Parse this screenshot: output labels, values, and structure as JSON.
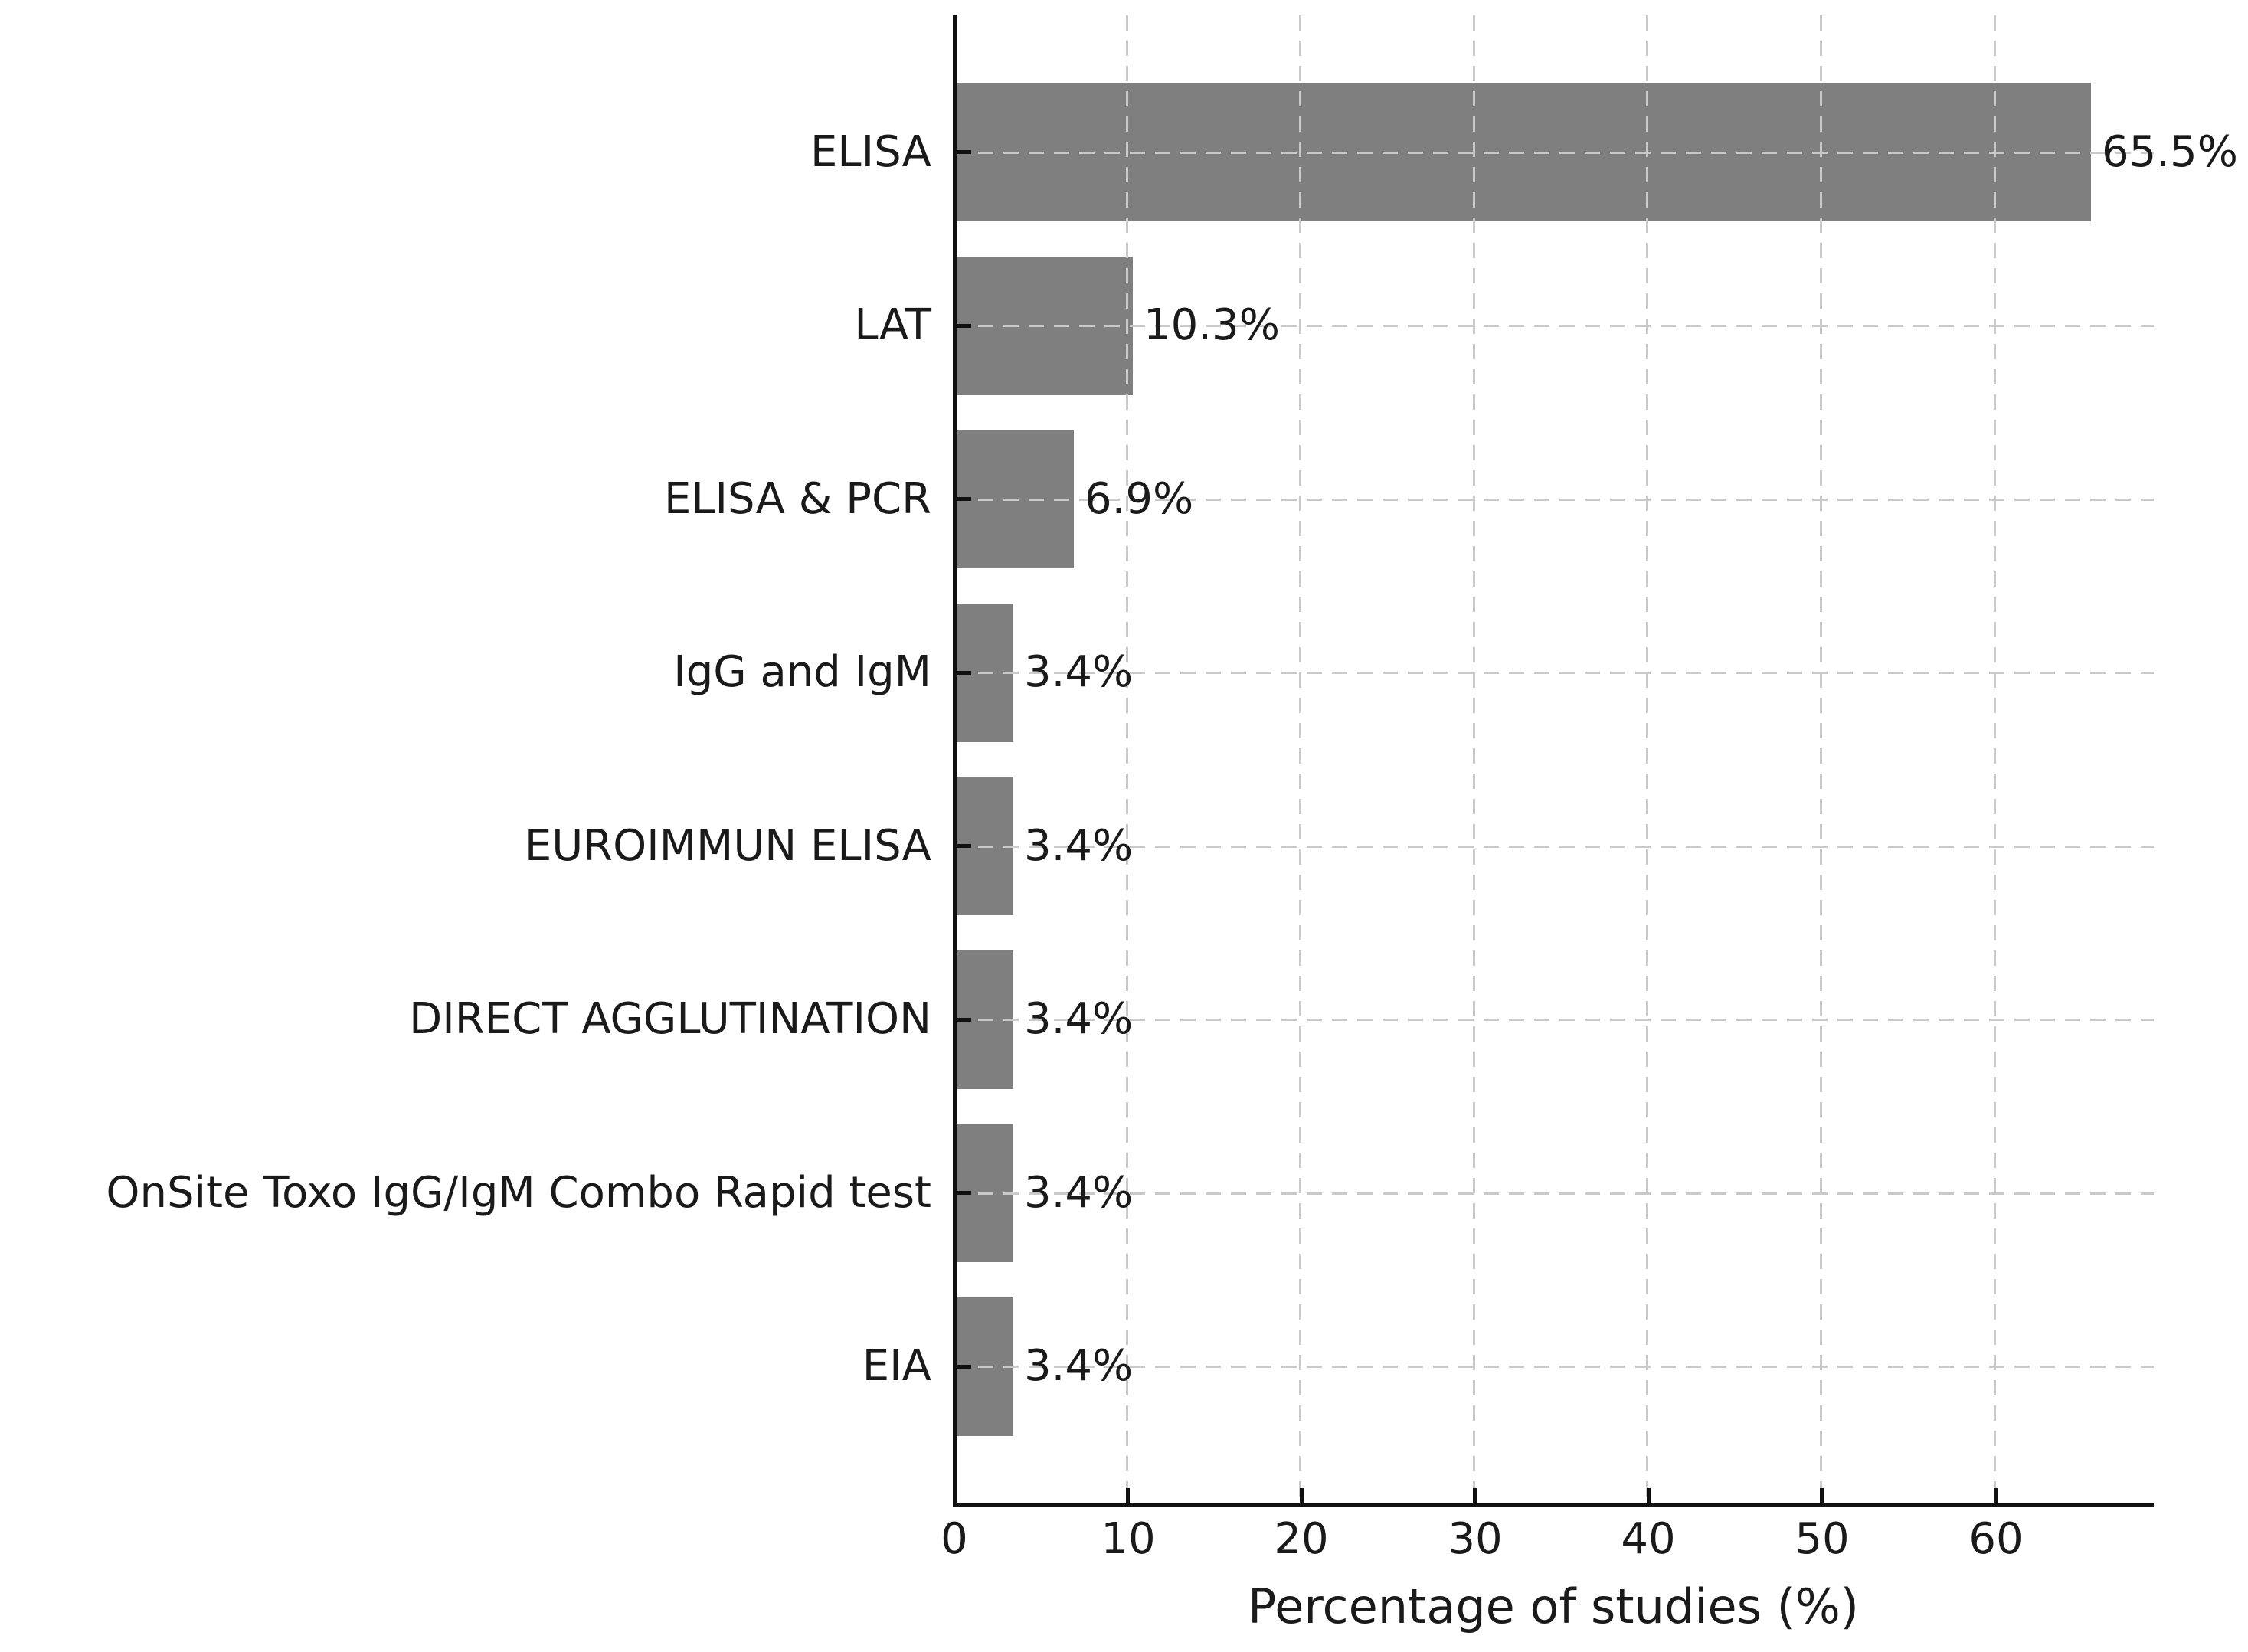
{
  "figure": {
    "background": "#ffffff",
    "bar_color": "#7f7f7f",
    "grid_color": "#c9c9c9",
    "axis_color": "#111111",
    "text_color": "#1a1a1a"
  },
  "chart_data": {
    "type": "bar",
    "orientation": "horizontal",
    "title": "",
    "xlabel": "Percentage of studies (%)",
    "ylabel": "",
    "categories": [
      "ELISA",
      "LAT",
      "ELISA & PCR",
      "IgG and IgM",
      "EUROIMMUN ELISA",
      "DIRECT AGGLUTINATION",
      "OnSite Toxo IgG/IgM Combo Rapid test",
      "EIA"
    ],
    "values": [
      65.5,
      10.3,
      6.9,
      3.4,
      3.4,
      3.4,
      3.4,
      3.4
    ],
    "value_labels": [
      "65.5%",
      "10.3%",
      "6.9%",
      "3.4%",
      "3.4%",
      "3.4%",
      "3.4%",
      "3.4%"
    ],
    "xticks": [
      0,
      10,
      20,
      30,
      40,
      50,
      60
    ],
    "xtick_labels": [
      "0",
      "10",
      "20",
      "30",
      "40",
      "50",
      "60"
    ],
    "xlim": [
      0,
      69.2
    ],
    "grid": "dashed-both-axes",
    "legend": "none"
  }
}
